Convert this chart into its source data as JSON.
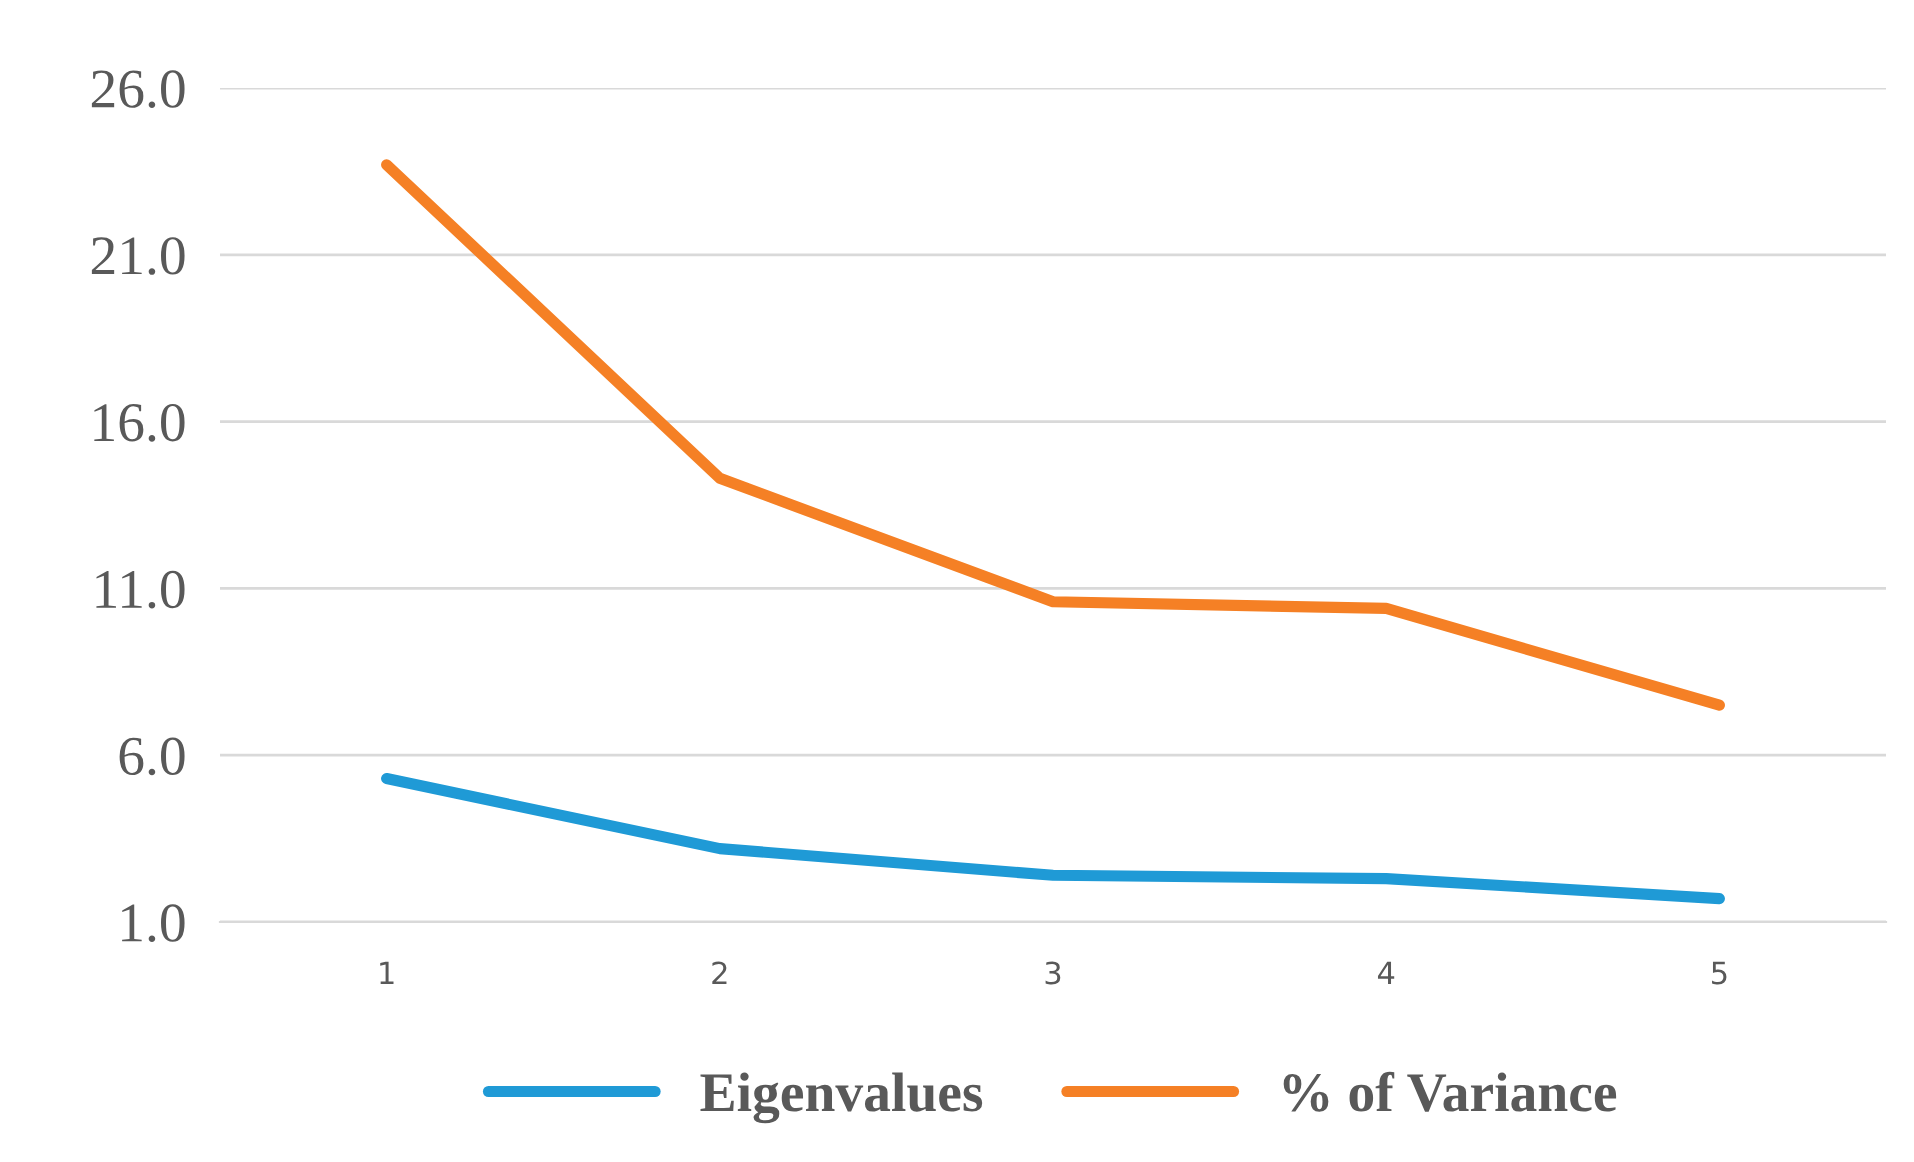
{
  "chart_data": {
    "type": "line",
    "categories": [
      "1",
      "2",
      "3",
      "4",
      "5"
    ],
    "series": [
      {
        "name": "Eigenvalues",
        "color": "#1f9ad6",
        "values": [
          5.3,
          3.2,
          2.4,
          2.3,
          1.7
        ]
      },
      {
        "name": "% of Variance",
        "color": "#f58025",
        "values": [
          23.7,
          14.3,
          10.6,
          10.4,
          7.5
        ]
      }
    ],
    "ylim": [
      1,
      26
    ],
    "yticks": [
      {
        "value": 1,
        "label": "1.0"
      },
      {
        "value": 6,
        "label": "6.0"
      },
      {
        "value": 11,
        "label": "11.0"
      },
      {
        "value": 16,
        "label": "16.0"
      },
      {
        "value": 21,
        "label": "21.0"
      },
      {
        "value": 26,
        "label": "26.0"
      }
    ],
    "grid": "y",
    "legend": "bottom",
    "marker": "none",
    "line_style": "solid"
  }
}
